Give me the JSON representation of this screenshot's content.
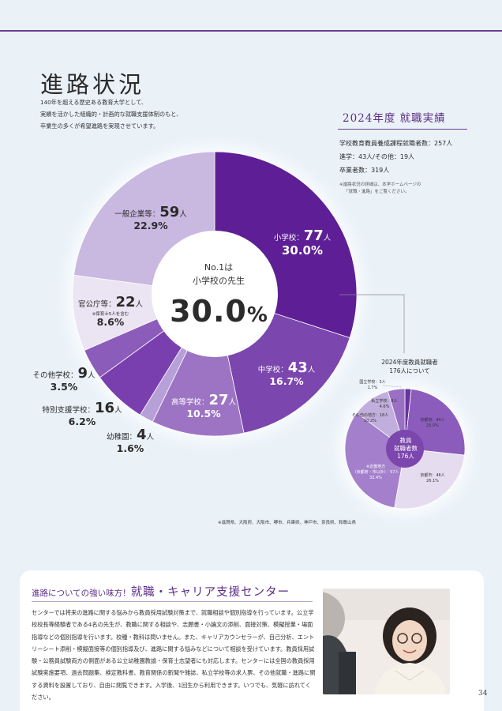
{
  "page": {
    "title": "進路状況",
    "intro": [
      "140年を超える歴史ある教育大学として、",
      "実績を活かした組織的・計画的な就職支援体制のもと、",
      "卒業生の多くが希望進路を実現させています。"
    ],
    "page_number": "34"
  },
  "main_chart": {
    "center_line1": "No.1は",
    "center_line2": "小学校の先生",
    "center_value": "30.0",
    "center_unit": "%",
    "segments": [
      {
        "name": "小学校：",
        "count": "77",
        "unit": "人",
        "percent": "30.0%",
        "value": 30.0,
        "color": "#5e1f96"
      },
      {
        "name": "中学校：",
        "count": "43",
        "unit": "人",
        "percent": "16.7%",
        "value": 16.7,
        "color": "#7b46ad"
      },
      {
        "name": "高等学校：",
        "count": "27",
        "unit": "人",
        "percent": "10.5%",
        "value": 10.5,
        "color": "#9d74c4"
      },
      {
        "name": "幼稚園：",
        "count": "4",
        "unit": "人",
        "percent": "1.6%",
        "value": 1.6,
        "color": "#b7a0d7"
      },
      {
        "name": "特別支援学校：",
        "count": "16",
        "unit": "人",
        "percent": "6.2%",
        "value": 6.2,
        "color": "#7a3fae"
      },
      {
        "name": "その他学校：",
        "count": "9",
        "unit": "人",
        "percent": "3.5%",
        "value": 3.5,
        "color": "#8c5cbb"
      },
      {
        "name": "官公庁等：",
        "count": "22",
        "unit": "人",
        "percent": "8.6%",
        "value": 8.6,
        "note": "※保育士5人を含む",
        "color": "#ebe4f2"
      },
      {
        "name": "一般企業等：",
        "count": "59",
        "unit": "人",
        "percent": "22.9%",
        "value": 22.9,
        "color": "#c9b8e0"
      }
    ]
  },
  "results": {
    "title": "2024年度 就職実績",
    "line1": "学校教育教員養成課程就職者数：257人",
    "line2": "進学：43人/その他：19人",
    "line3": "卒業者数：319人",
    "note1": "※進路状況の詳細は、本学ホームページの",
    "note2": "「就職・進路」をご覧ください。"
  },
  "small_chart": {
    "title_line1": "2024年度教員就職者",
    "title_line2": "176人について",
    "center_line1": "教員",
    "center_line2": "就職者数",
    "center_line3": "176人",
    "segments": [
      {
        "label": "国立学校：3人",
        "percent": "1.7%",
        "value": 1.7,
        "color": "#6a34a0"
      },
      {
        "label": "京都府：44人",
        "percent": "25.0%",
        "value": 25.0,
        "color": "#8b5cbc"
      },
      {
        "label": "京都市：46人",
        "percent": "26.1%",
        "value": 26.1,
        "color": "#e6dcf0"
      },
      {
        "label_line1": "※近畿地方",
        "label_line2": "（京都府・市以外）：57人",
        "percent": "32.4%",
        "value": 32.4,
        "color": "#a47fcb"
      },
      {
        "label": "その他の地方：18人",
        "percent": "10.2%",
        "value": 10.2,
        "color": "#c1aedc"
      },
      {
        "label": "私立学校：8人",
        "percent": "4.6%",
        "value": 4.6,
        "color": "#9a70c5"
      }
    ],
    "region_note": "※滋賀県、大阪府、大阪市、堺市、兵庫県、神戸市、奈良県、和歌山県"
  },
  "support": {
    "title_a": "進路についての強い味方！",
    "title_b": "就職・キャリア支援センター",
    "body": "センターでは将来の進路に関する悩みから教員採用試験対策まで、就職相談や個別指導を行っています。公立学校校長等経験者である4名の先生が、教職に関する相談や、志願書・小論文の添削、面接対策、模擬授業・場面指導などの個別指導を行います。校種・教科は問いません。また、キャリアカウンセラーが、自己分析、エントリーシート添削・模擬面接等の個別指導及び、進路に関する悩みなどについて相談を受けています。教員採用試験・公務員試験両方の側面がある公立幼稚園教諭・保育士志望者にも対応します。センターには全国の教員採用試験実施要項、過去問題集、検定教科書、教育関係の新聞や雑誌、私立学校等の求人票、その他就職・進路に関する資料を設置しており、自由に閲覧できます。入学後、1回生から利用できます。いつでも、気軽に訪れてください。"
  }
}
